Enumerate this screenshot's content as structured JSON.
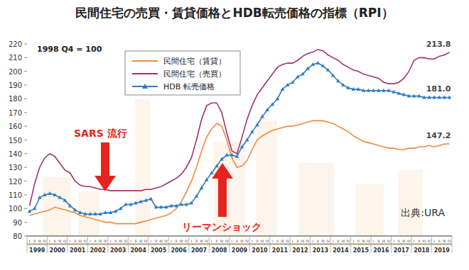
{
  "chart_data": {
    "type": "line",
    "title": "民間住宅の売買・賃貸価格とHDB転売価格の指標（RPI）",
    "subtitle": "1998 Q4 = 100",
    "source": "出典:URA",
    "annotations": [
      {
        "text": "SARS 流行",
        "arrow": "down"
      },
      {
        "text": "リーマンショック",
        "arrow": "up"
      }
    ],
    "year_labels": [
      "1999",
      "2000",
      "2001",
      "2002",
      "2003",
      "2004",
      "2005",
      "2006",
      "2007",
      "2008",
      "2009",
      "2010",
      "2011",
      "2012",
      "2013",
      "2014",
      "2015",
      "2016",
      "2017",
      "2018",
      "2019"
    ],
    "categories": [
      "I",
      "II",
      "III",
      "IV",
      "I",
      "II",
      "III",
      "IV",
      "I",
      "II",
      "III",
      "IV",
      "I",
      "II",
      "III",
      "IV",
      "I",
      "II",
      "III",
      "IV",
      "I",
      "II",
      "III",
      "IV",
      "I",
      "II",
      "III",
      "IV",
      "I",
      "II",
      "III",
      "IV",
      "I",
      "II",
      "III",
      "IV",
      "I",
      "II",
      "III",
      "IV",
      "I",
      "II",
      "III",
      "IV",
      "I",
      "II",
      "III",
      "IV",
      "I",
      "II",
      "III",
      "IV",
      "I",
      "II",
      "III",
      "IV",
      "I",
      "II",
      "III",
      "IV",
      "I",
      "II",
      "III",
      "IV",
      "I",
      "II",
      "III",
      "IV",
      "I",
      "II",
      "III",
      "IV",
      "I",
      "II",
      "III",
      "IV",
      "I",
      "II",
      "III",
      "IV",
      "I",
      "II",
      "III",
      "IV"
    ],
    "series": [
      {
        "name": "民間住宅（賃貸）",
        "color": "#f08a3e",
        "marker": "none",
        "line_style": "solid",
        "end_label": "147.2",
        "values": [
          95,
          96,
          97,
          98,
          99,
          101,
          100,
          99,
          98,
          97,
          95,
          94,
          93,
          92,
          91,
          90,
          90,
          89,
          89,
          89,
          89,
          89,
          90,
          91,
          92,
          93,
          94,
          95,
          97,
          100,
          105,
          112,
          120,
          130,
          142,
          152,
          158,
          162,
          160,
          150,
          137,
          130,
          131,
          135,
          143,
          150,
          153,
          155,
          157,
          158,
          159,
          160,
          160,
          161,
          162,
          163,
          164,
          164,
          164,
          163,
          162,
          160,
          158,
          156,
          153,
          151,
          149,
          148,
          147,
          146,
          145,
          144,
          144,
          143,
          143,
          144,
          144,
          145,
          145,
          146,
          145,
          146,
          147,
          147.2
        ]
      },
      {
        "name": "民間住宅（売買）",
        "color": "#a3306f",
        "marker": "none",
        "line_style": "solid",
        "end_label": "213.8",
        "values": [
          102,
          118,
          130,
          137,
          140,
          138,
          133,
          128,
          126,
          120,
          117,
          116,
          116,
          115,
          114,
          114,
          113,
          113,
          113,
          113,
          113,
          113,
          113,
          114,
          114,
          115,
          116,
          118,
          120,
          122,
          125,
          130,
          137,
          150,
          165,
          175,
          177,
          177,
          170,
          155,
          142,
          140,
          152,
          165,
          175,
          183,
          188,
          193,
          198,
          203,
          205,
          206,
          206,
          208,
          211,
          213,
          214,
          216,
          215,
          212,
          210,
          208,
          205,
          203,
          201,
          200,
          198,
          197,
          196,
          195,
          192,
          191,
          191,
          192,
          195,
          200,
          208,
          210,
          210,
          209,
          209,
          211,
          212,
          213.8
        ]
      },
      {
        "name": "HDB 転売価格",
        "color": "#2f7cc2",
        "marker": "triangle",
        "line_style": "solid",
        "end_label": "181.0",
        "values": [
          98,
          100,
          108,
          110,
          111,
          110,
          108,
          106,
          102,
          99,
          97,
          96,
          96,
          96,
          96,
          97,
          97,
          98,
          100,
          103,
          103,
          104,
          105,
          106,
          107,
          101,
          101,
          101,
          102,
          102,
          103,
          103,
          104,
          109,
          115,
          121,
          126,
          131,
          136,
          139,
          139,
          138,
          145,
          150,
          156,
          161,
          167,
          172,
          176,
          180,
          187,
          190,
          192,
          196,
          198,
          202,
          205,
          206,
          204,
          201,
          197,
          193,
          190,
          188,
          187,
          187,
          186,
          186,
          186,
          186,
          186,
          186,
          185,
          184,
          183,
          182,
          182,
          182,
          181,
          181,
          181,
          181,
          181,
          181.0
        ]
      }
    ],
    "ylim": [
      80,
      220
    ],
    "yticks": [
      80,
      90,
      100,
      110,
      120,
      130,
      140,
      150,
      160,
      170,
      180,
      190,
      200,
      210,
      220
    ],
    "grid": false,
    "legend": "top-left"
  }
}
